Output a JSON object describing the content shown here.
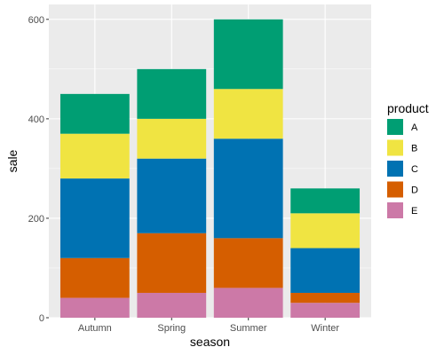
{
  "chart_data": {
    "type": "bar",
    "stacked": true,
    "xlabel": "season",
    "ylabel": "sale",
    "categories": [
      "Autumn",
      "Spring",
      "Summer",
      "Winter"
    ],
    "ylim": [
      0,
      630
    ],
    "yticks": [
      0,
      200,
      400,
      600
    ],
    "grid": true,
    "legend": {
      "title": "product",
      "position": "right"
    },
    "series": [
      {
        "name": "E",
        "color": "#CC79A7",
        "values": [
          40,
          50,
          60,
          30
        ]
      },
      {
        "name": "D",
        "color": "#D55E00",
        "values": [
          80,
          120,
          100,
          20
        ]
      },
      {
        "name": "C",
        "color": "#0072B2",
        "values": [
          160,
          150,
          200,
          90
        ]
      },
      {
        "name": "B",
        "color": "#F0E442",
        "values": [
          90,
          80,
          100,
          70
        ]
      },
      {
        "name": "A",
        "color": "#009E73",
        "values": [
          80,
          100,
          140,
          50
        ]
      }
    ],
    "legend_order": [
      "A",
      "B",
      "C",
      "D",
      "E"
    ]
  }
}
